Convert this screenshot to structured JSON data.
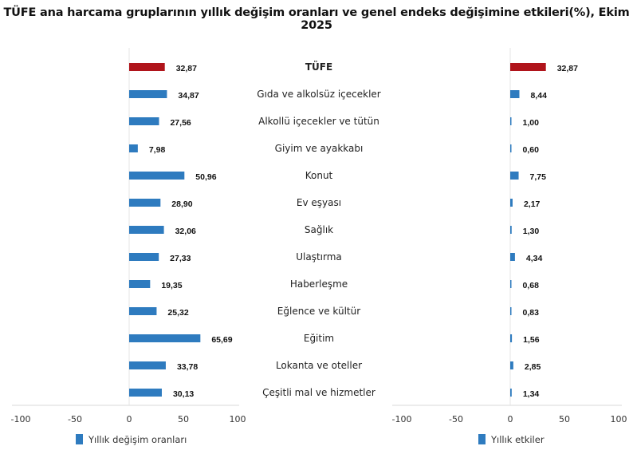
{
  "chart_data": [
    {
      "type": "bar",
      "orientation": "horizontal",
      "title": "TÜFE ana harcama gruplarının yıllık değişim oranları ve genel endeks değişimine etkileri(%), Ekim 2025",
      "categories": [
        "TÜFE",
        "Gıda ve alkolsüz içecekler",
        "Alkollü içecekler ve tütün",
        "Giyim ve ayakkabı",
        "Konut",
        "Ev eşyası",
        "Sağlık",
        "Ulaştırma",
        "Haberleşme",
        "Eğlence ve kültür",
        "Eğitim",
        "Lokanta ve oteller",
        "Çeşitli mal ve hizmetler"
      ],
      "series": [
        {
          "name": "Yıllık değişim oranları",
          "values": [
            32.87,
            34.87,
            27.56,
            7.98,
            50.96,
            28.9,
            32.06,
            27.33,
            19.35,
            25.32,
            65.69,
            33.78,
            30.13
          ],
          "labels": [
            "32,87",
            "34,87",
            "27,56",
            "7,98",
            "50,96",
            "28,90",
            "32,06",
            "27,33",
            "19,35",
            "25,32",
            "65,69",
            "33,78",
            "30,13"
          ]
        }
      ],
      "xlim": [
        -100,
        100
      ],
      "xticks": [
        "-100",
        "-50",
        "0",
        "50",
        "100"
      ],
      "legend": "bottom",
      "colors": {
        "bar": "#2e7bbf",
        "highlight": "#b0141b"
      }
    },
    {
      "type": "bar",
      "orientation": "horizontal",
      "series": [
        {
          "name": "Yıllık etkiler",
          "values": [
            32.87,
            8.44,
            1.0,
            0.6,
            7.75,
            2.17,
            1.3,
            4.34,
            0.68,
            0.83,
            1.56,
            2.85,
            1.34
          ],
          "labels": [
            "32,87",
            "8,44",
            "1,00",
            "0,60",
            "7,75",
            "2,17",
            "1,30",
            "4,34",
            "0,68",
            "0,83",
            "1,56",
            "2,85",
            "1,34"
          ]
        }
      ],
      "xlim": [
        -100,
        100
      ],
      "xticks": [
        "-100",
        "-50",
        "0",
        "50",
        "100"
      ],
      "legend": "bottom",
      "colors": {
        "bar": "#2e7bbf",
        "highlight": "#b0141b"
      }
    }
  ]
}
